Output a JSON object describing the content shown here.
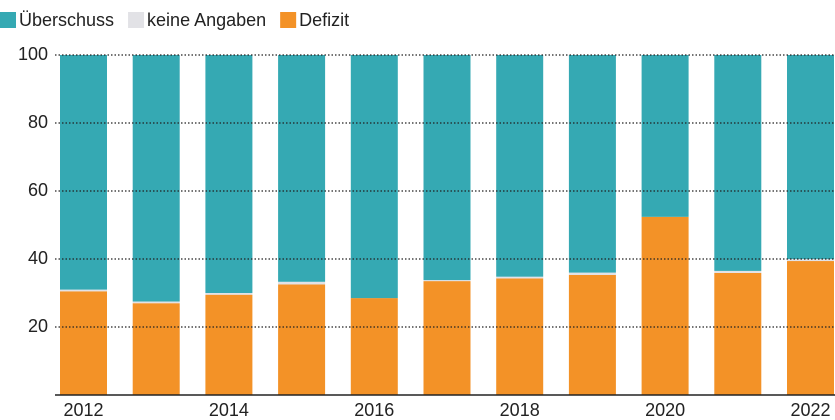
{
  "chart_data": {
    "type": "stacked_bar",
    "categories": [
      "2012",
      null,
      "2014",
      null,
      "2016",
      null,
      "2018",
      null,
      "2020",
      null,
      "2022"
    ],
    "series": [
      {
        "name": "Überschuss",
        "color": "#35a9b3",
        "values": [
          69,
          72.5,
          70,
          66.7,
          71.5,
          66.2,
          65.2,
          64,
          47.6,
          63.5,
          60
        ]
      },
      {
        "name": "keine Angaben",
        "color": "#e2e2e6",
        "values": [
          0.5,
          0.5,
          0.5,
          0.8,
          0,
          0.3,
          0.5,
          0.7,
          0,
          0.6,
          0.6
        ]
      },
      {
        "name": "Defizit",
        "color": "#f39227",
        "values": [
          30.5,
          27,
          29.5,
          32.5,
          28.5,
          33.5,
          34.3,
          35.3,
          52.4,
          35.9,
          39.4
        ]
      }
    ],
    "ylim": [
      0,
      100
    ],
    "yticks": [
      20,
      40,
      60,
      80,
      100
    ],
    "grid": true,
    "legend": "top-left"
  }
}
